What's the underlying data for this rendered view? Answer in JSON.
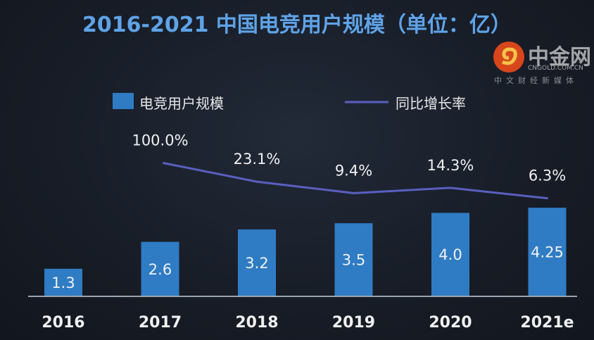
{
  "chart_data": {
    "type": "bar+line",
    "title": "2016-2021 中国电竞用户规模（单位：亿）",
    "categories": [
      "2016",
      "2017",
      "2018",
      "2019",
      "2020",
      "2021e"
    ],
    "series": [
      {
        "name": "电竞用户规模",
        "type": "bar",
        "values": [
          1.3,
          2.6,
          3.2,
          3.5,
          4.0,
          4.25
        ],
        "labels": [
          "1.3",
          "2.6",
          "3.2",
          "3.5",
          "4.0",
          "4.25"
        ],
        "color": "#2f7cc4"
      },
      {
        "name": "同比增长率",
        "type": "line",
        "values": [
          null,
          100.0,
          23.1,
          9.4,
          14.3,
          6.3
        ],
        "labels": [
          "",
          "100.0%",
          "23.1%",
          "9.4%",
          "14.3%",
          "6.3%"
        ],
        "color": "#5a5fc0"
      }
    ],
    "legend": "top-center",
    "grid": false
  },
  "watermark": {
    "name": "中金网",
    "domain": "CNGOLD.COM.CN",
    "slogan": "中文财经新媒体"
  }
}
